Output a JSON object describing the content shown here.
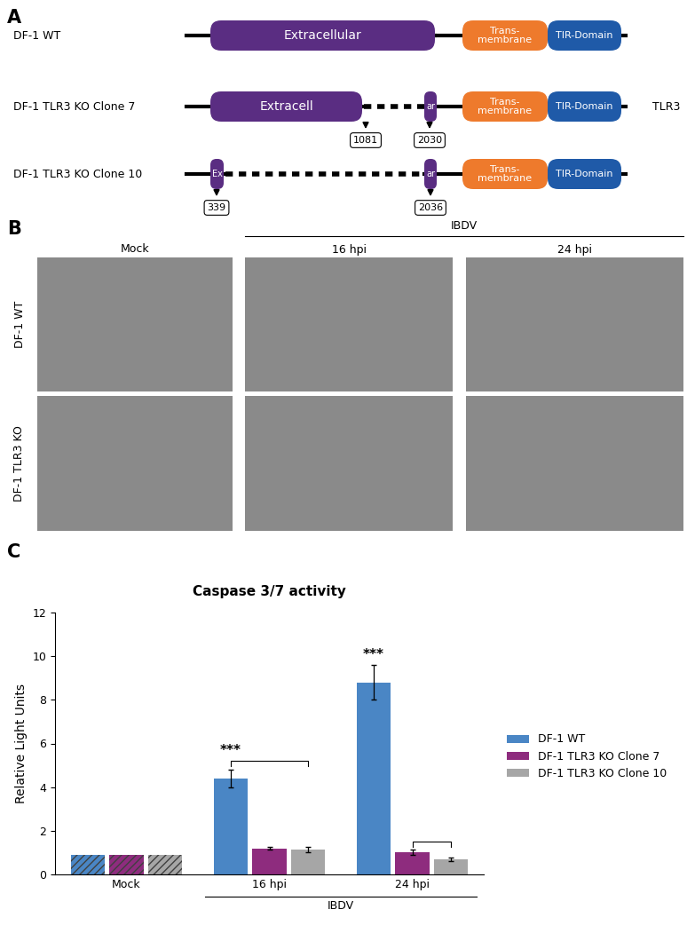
{
  "panel_labels": [
    "A",
    "B",
    "C"
  ],
  "diagram": {
    "transmembrane_label": "Trans-\nmembrane",
    "tir_label": "TIR-Domain",
    "side_label": "TLR3",
    "constructs": [
      {
        "name": "DF-1 WT",
        "extracellular_label": "Extracellular",
        "remnant_label": null,
        "deletion": null
      },
      {
        "name": "DF-1 TLR3 KO Clone 7",
        "extracellular_label": "Extracell",
        "remnant_label": "ar",
        "deletion": [
          1081,
          2030
        ]
      },
      {
        "name": "DF-1 TLR3 KO Clone 10",
        "extracellular_label": "Ex",
        "remnant_label": "ar",
        "deletion": [
          339,
          2036
        ]
      }
    ]
  },
  "micrographs": {
    "columns": [
      "Mock",
      "16 hpi",
      "24 hpi"
    ],
    "column_group": "IBDV",
    "rows": [
      "DF-1 WT",
      "DF-1 TLR3 KO"
    ]
  },
  "chart_data": {
    "type": "bar",
    "title": "Caspase 3/7 activity",
    "y_label": "Relative Light Units",
    "categories": [
      "Mock",
      "16 hpi",
      "24 hpi"
    ],
    "category_group": "IBDV",
    "ylim": [
      0,
      12
    ],
    "yticks": [
      0,
      2,
      4,
      6,
      8,
      10,
      12
    ],
    "legend": "right",
    "series": [
      {
        "name": "DF-1 WT",
        "color": "#4a86c5",
        "values": [
          0.9,
          4.4,
          8.8
        ],
        "errors": [
          null,
          0.4,
          0.8
        ]
      },
      {
        "name": "DF-1 TLR3 KO Clone 7",
        "color": "#8e2c7e",
        "values": [
          0.9,
          1.2,
          1.0
        ],
        "errors": [
          null,
          0.08,
          0.12
        ]
      },
      {
        "name": "DF-1 TLR3 KO Clone 10",
        "color": "#a6a6a6",
        "values": [
          0.9,
          1.15,
          0.7
        ],
        "errors": [
          null,
          0.12,
          0.08
        ]
      }
    ],
    "annotations": [
      {
        "category": "16 hpi",
        "label": "***",
        "label_over": "DF-1 WT",
        "from": "DF-1 WT",
        "to": "DF-1 TLR3 KO Clone 10"
      },
      {
        "category": "24 hpi",
        "label": "***",
        "label_over": "DF-1 WT",
        "from": "DF-1 TLR3 KO Clone 7",
        "to": "DF-1 TLR3 KO Clone 10"
      }
    ]
  }
}
